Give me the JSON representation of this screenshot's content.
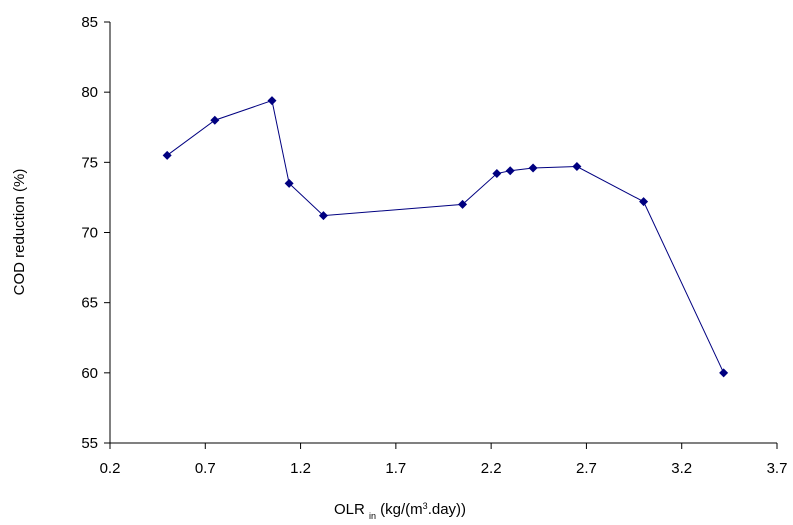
{
  "chart_data": {
    "type": "line",
    "x_label": [
      {
        "text": "OLR ",
        "style": "normal"
      },
      {
        "text": "in",
        "style": "sub"
      },
      {
        "text": " (kg/(m",
        "style": "normal"
      },
      {
        "text": "3",
        "style": "sup"
      },
      {
        "text": ".day))",
        "style": "normal"
      }
    ],
    "y_label": "COD reduction (%)",
    "series": [
      {
        "name": "COD reduction",
        "color": "#000080",
        "x": [
          0.5,
          0.75,
          1.05,
          1.14,
          1.32,
          2.05,
          2.23,
          2.3,
          2.42,
          2.65,
          3.0,
          3.42
        ],
        "values": [
          75.5,
          78.0,
          79.4,
          73.5,
          71.2,
          72.0,
          74.2,
          74.4,
          74.6,
          74.7,
          72.2,
          60.0
        ]
      }
    ],
    "xlim": [
      0.2,
      3.7
    ],
    "xticks": [
      0.2,
      0.7,
      1.2,
      1.7,
      2.2,
      2.7,
      3.2,
      3.7
    ],
    "ylim": [
      55,
      85
    ],
    "yticks": [
      55,
      60,
      65,
      70,
      75,
      80,
      85
    ],
    "grid": false
  }
}
